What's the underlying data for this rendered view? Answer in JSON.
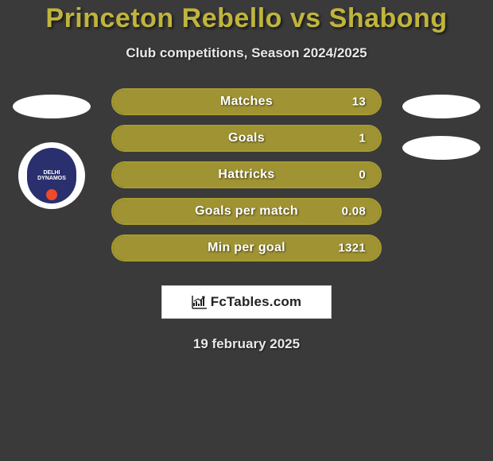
{
  "page": {
    "title_color": "#c0b53c",
    "text_color": "#ffffff",
    "background": "#3a3a3a"
  },
  "header": {
    "title": "Princeton Rebello vs Shabong",
    "subtitle": "Club competitions, Season 2024/2025"
  },
  "left_side": {
    "badge_present": true,
    "badge_bg": "#2a2f6d",
    "badge_text_top": "DELHI",
    "badge_text_bottom": "DYNAMOS",
    "badge_accent": "#f04a2a"
  },
  "right_side": {
    "elliptical_placeholders": 2
  },
  "stats": {
    "bar_border_color": "#a79b2e",
    "bar_fill_color": "#b1a333",
    "rows": [
      {
        "label": "Matches",
        "value": "13",
        "fill_pct": 100
      },
      {
        "label": "Goals",
        "value": "1",
        "fill_pct": 100
      },
      {
        "label": "Hattricks",
        "value": "0",
        "fill_pct": 100
      },
      {
        "label": "Goals per match",
        "value": "0.08",
        "fill_pct": 100
      },
      {
        "label": "Min per goal",
        "value": "1321",
        "fill_pct": 100
      }
    ]
  },
  "footer": {
    "brand_text": "FcTables.com",
    "date": "19 february 2025"
  }
}
